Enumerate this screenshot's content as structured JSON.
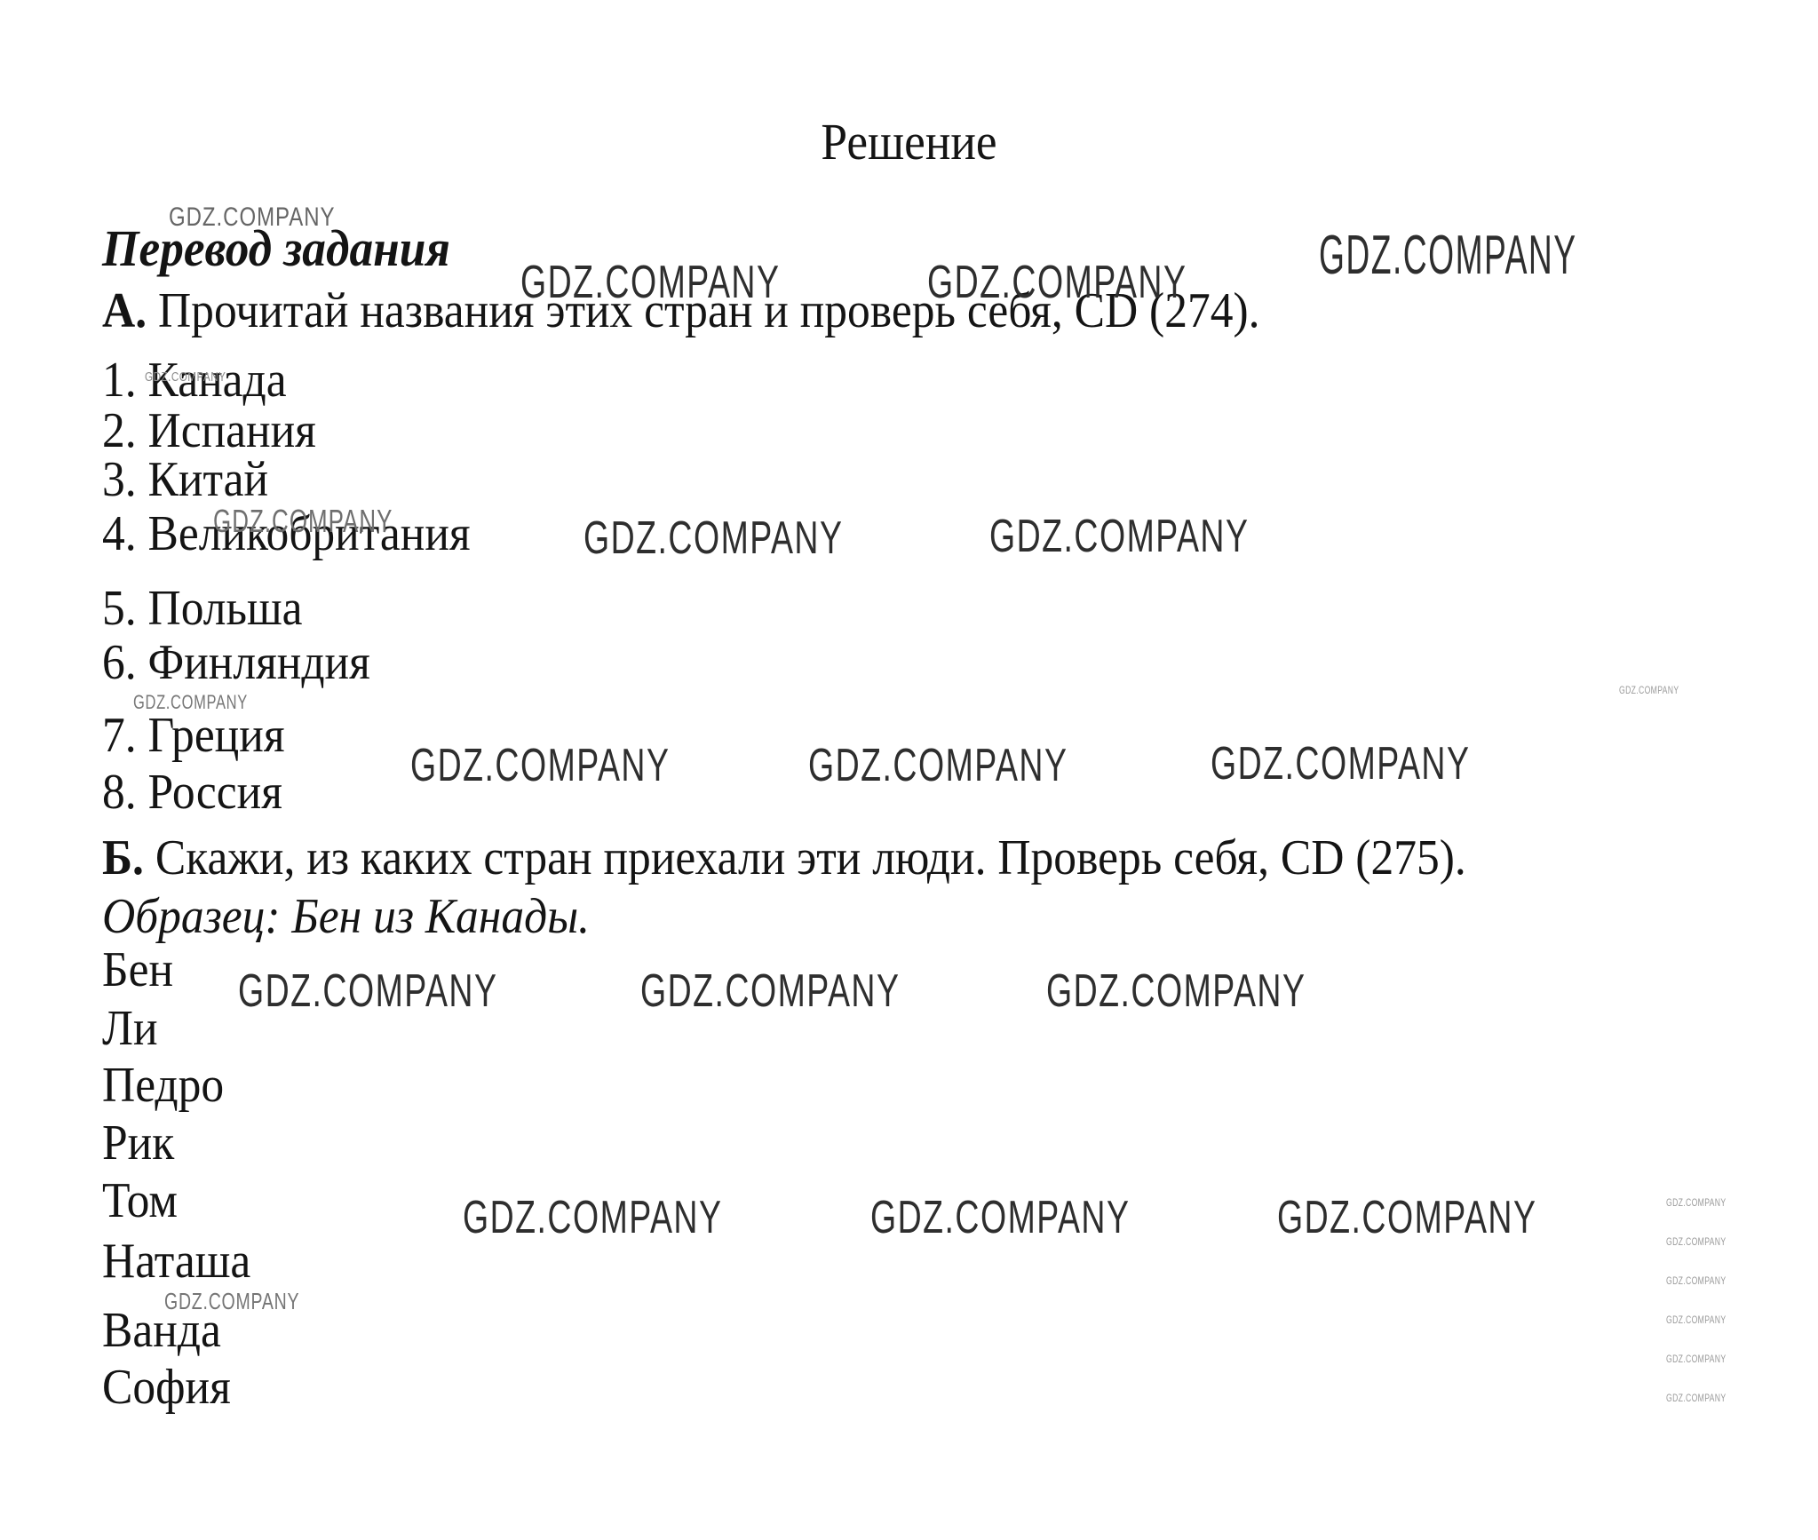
{
  "page": {
    "title": "Решение",
    "subtitle": "Перевод задания",
    "section_a": {
      "label": "А.",
      "text": " Прочитай названия этих стран и проверь себя, CD (274)."
    },
    "countries": [
      {
        "num": "1.",
        "name": "Канада"
      },
      {
        "num": "2.",
        "name": "Испания"
      },
      {
        "num": "3.",
        "name": "Китай"
      },
      {
        "num": "4.",
        "name": "Великобритания"
      },
      {
        "num": "5.",
        "name": "Польша"
      },
      {
        "num": "6.",
        "name": "Финляндия"
      },
      {
        "num": "7.",
        "name": "Греция"
      },
      {
        "num": "8.",
        "name": "Россия"
      }
    ],
    "section_b": {
      "label": "Б.",
      "text": " Скажи, из каких стран приехали эти люди. Проверь себя, CD (275)."
    },
    "example": "Образец: Бен из Канады.",
    "names": [
      "Бен",
      "Ли",
      "Педро",
      "Рик",
      "Том",
      "Наташа",
      "Ванда",
      "София"
    ],
    "watermark_text": "GDZ.COMPANY"
  },
  "colors": {
    "background": "#ffffff",
    "text": "#141414",
    "watermark_dark": "#2e2e2e",
    "watermark_gray": "#777777"
  }
}
